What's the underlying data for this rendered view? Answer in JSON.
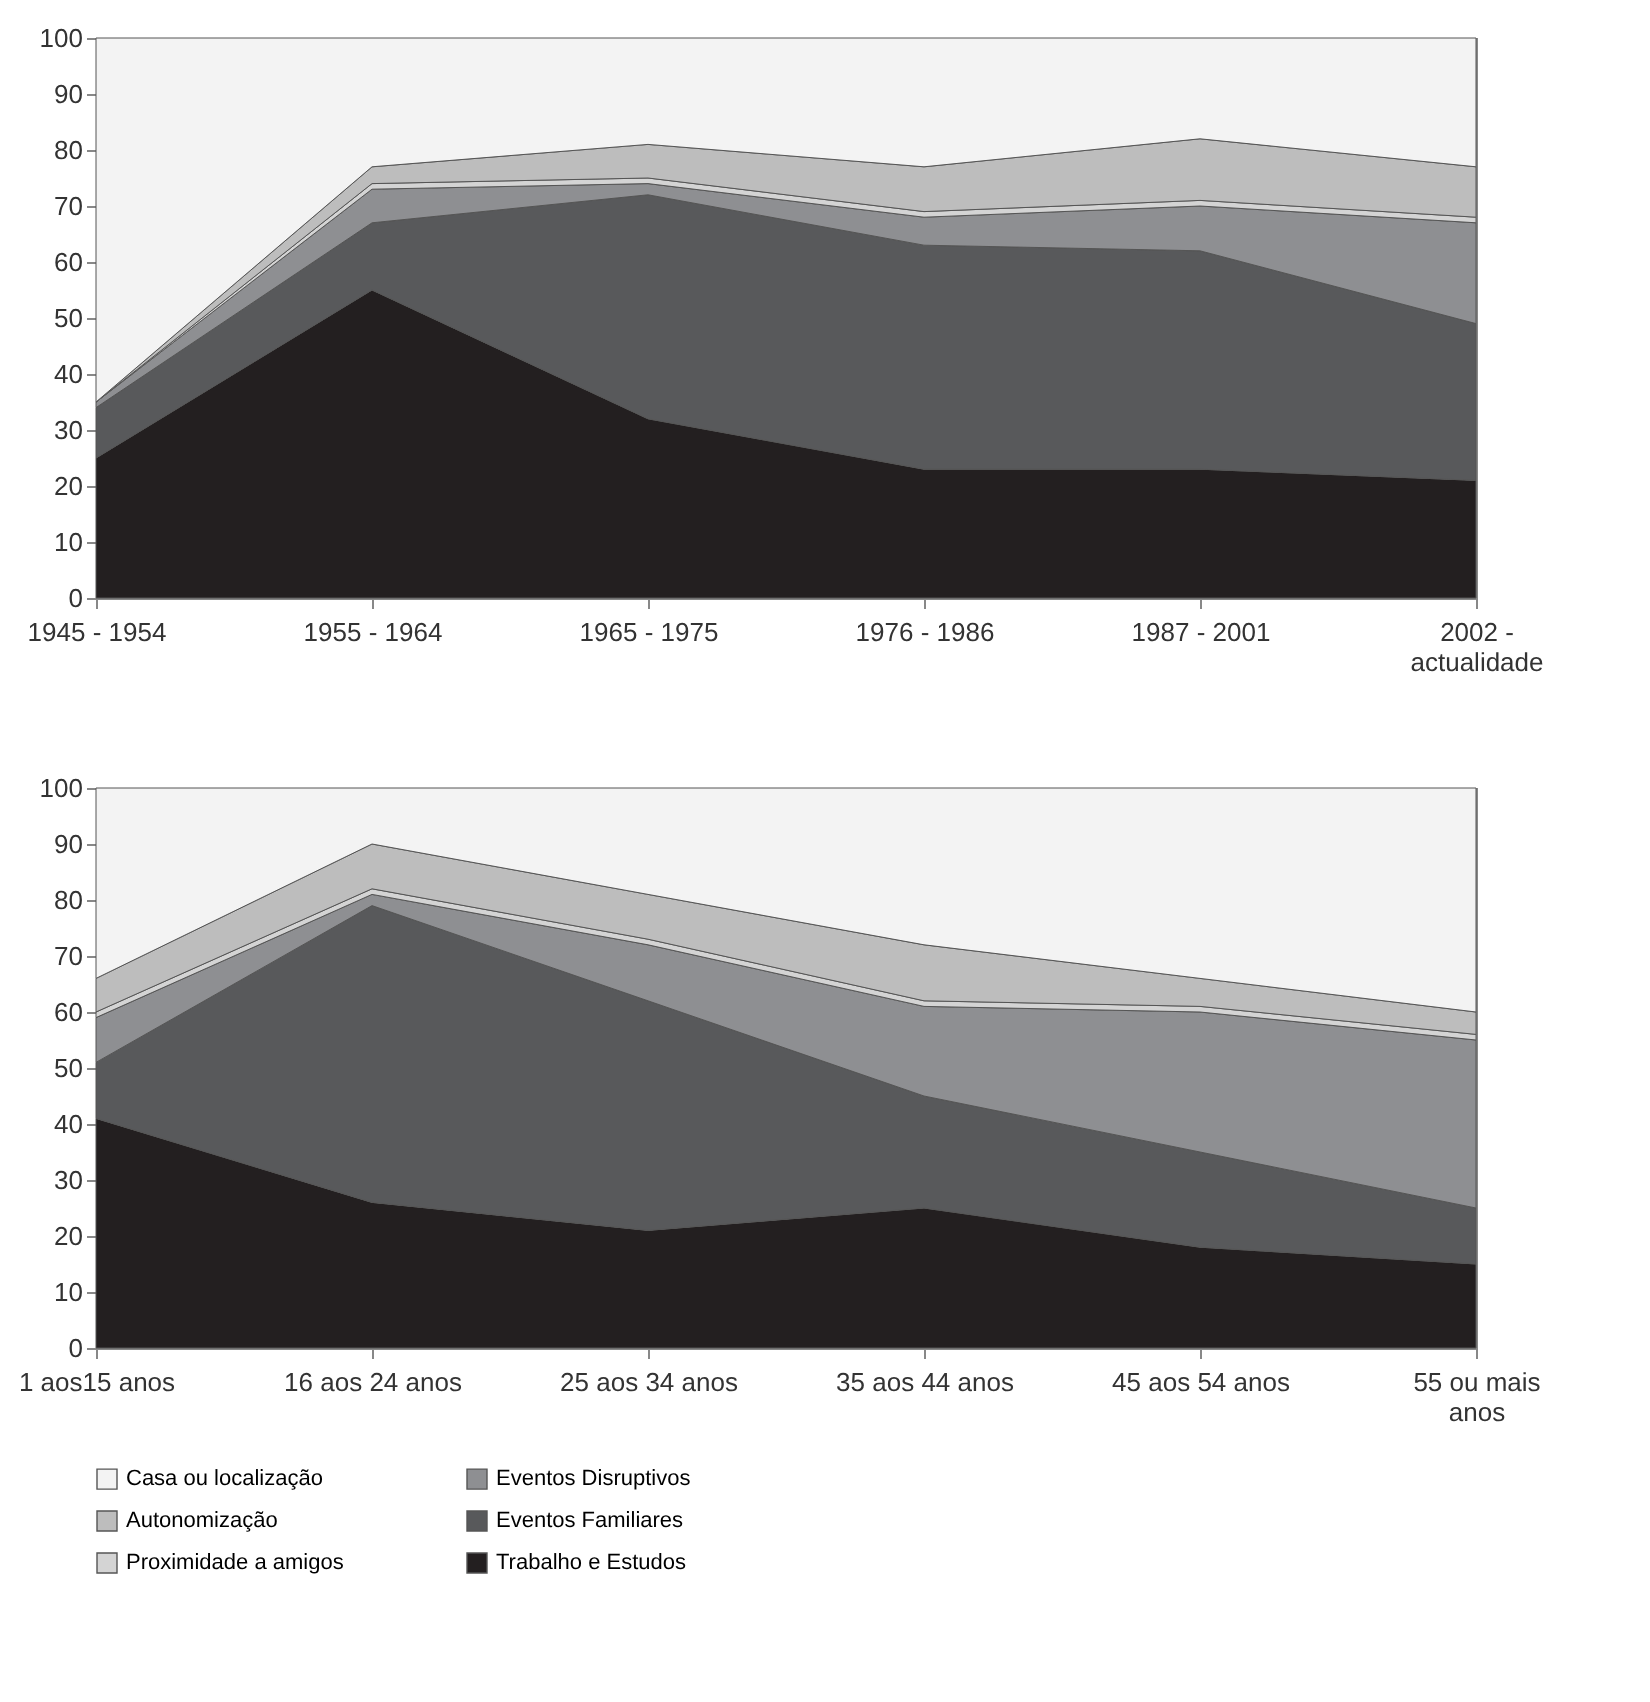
{
  "chart_data": [
    {
      "type": "area",
      "stacked": true,
      "legend": "bottom",
      "categories": [
        "1945 - 1954",
        "1955 - 1964",
        "1965 - 1975",
        "1976 - 1986",
        "1987 - 2001",
        "2002 - actualidade"
      ],
      "ylim": [
        0,
        100
      ],
      "yticks": [
        0,
        10,
        20,
        30,
        40,
        50,
        60,
        70,
        80,
        90,
        100
      ],
      "series": [
        {
          "name": "Trabalho e Estudos",
          "color": "#231f20",
          "values": [
            25,
            55,
            32,
            23,
            23,
            21
          ]
        },
        {
          "name": "Eventos Familiares",
          "color": "#58595b",
          "values": [
            9,
            12,
            40,
            40,
            39,
            28
          ]
        },
        {
          "name": "Eventos Disruptivos",
          "color": "#8e8f92",
          "values": [
            1,
            6,
            2,
            5,
            8,
            18
          ]
        },
        {
          "name": "Proximidade a amigos",
          "color": "#d4d4d4",
          "values": [
            0,
            1,
            1,
            1,
            1,
            1
          ]
        },
        {
          "name": "Autonomização",
          "color": "#bdbdbd",
          "values": [
            0,
            3,
            6,
            8,
            11,
            9
          ]
        },
        {
          "name": "Casa ou localização",
          "color": "#f3f3f3",
          "values": [
            65,
            23,
            19,
            23,
            18,
            23
          ]
        }
      ]
    },
    {
      "type": "area",
      "stacked": true,
      "legend": "bottom",
      "categories": [
        "1 aos15 anos",
        "16 aos 24 anos",
        "25 aos 34 anos",
        "35 aos 44 anos",
        "45 aos 54 anos",
        "55 ou mais anos"
      ],
      "ylim": [
        0,
        100
      ],
      "yticks": [
        0,
        10,
        20,
        30,
        40,
        50,
        60,
        70,
        80,
        90,
        100
      ],
      "series": [
        {
          "name": "Trabalho e Estudos",
          "color": "#231f20",
          "values": [
            41,
            26,
            21,
            25,
            18,
            15
          ]
        },
        {
          "name": "Eventos Familiares",
          "color": "#58595b",
          "values": [
            10,
            53,
            41,
            20,
            17,
            10
          ]
        },
        {
          "name": "Eventos Disruptivos",
          "color": "#8e8f92",
          "values": [
            8,
            2,
            10,
            16,
            25,
            30
          ]
        },
        {
          "name": "Proximidade a amigos",
          "color": "#d4d4d4",
          "values": [
            1,
            1,
            1,
            1,
            1,
            1
          ]
        },
        {
          "name": "Autonomização",
          "color": "#bdbdbd",
          "values": [
            6,
            8,
            8,
            10,
            5,
            4
          ]
        },
        {
          "name": "Casa ou localização",
          "color": "#f3f3f3",
          "values": [
            34,
            10,
            19,
            28,
            34,
            40
          ]
        }
      ]
    }
  ]
}
